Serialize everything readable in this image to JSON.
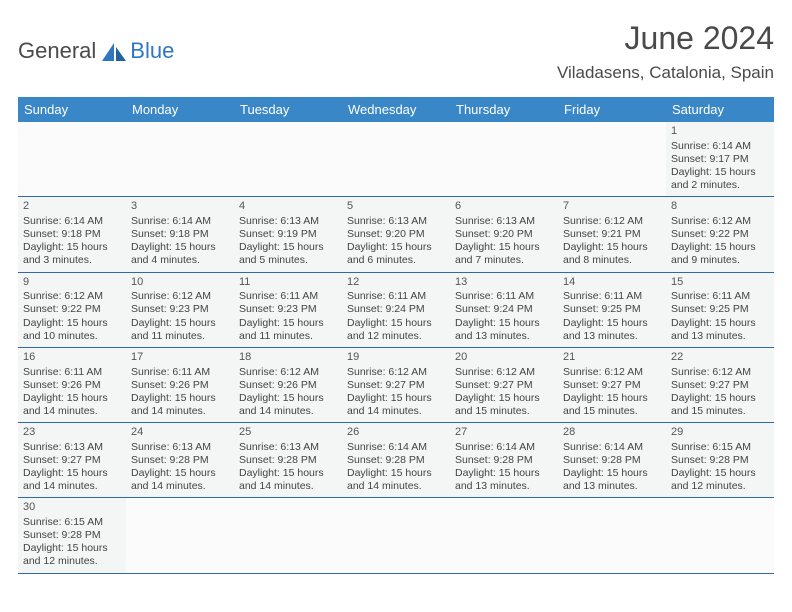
{
  "logo": {
    "general": "General",
    "blue": "Blue"
  },
  "title": "June 2024",
  "location": "Viladasens, Catalonia, Spain",
  "colors": {
    "header_bg": "#3a87c8",
    "header_text": "#ffffff",
    "border": "#2f6aa8",
    "cell_bg": "#f4f5f5",
    "logo_blue": "#2f78bf",
    "text": "#4a4a4a"
  },
  "day_headers": [
    "Sunday",
    "Monday",
    "Tuesday",
    "Wednesday",
    "Thursday",
    "Friday",
    "Saturday"
  ],
  "first_weekday_index": 6,
  "days": [
    {
      "n": 1,
      "sunrise": "6:14 AM",
      "sunset": "9:17 PM",
      "dl": "15 hours and 2 minutes."
    },
    {
      "n": 2,
      "sunrise": "6:14 AM",
      "sunset": "9:18 PM",
      "dl": "15 hours and 3 minutes."
    },
    {
      "n": 3,
      "sunrise": "6:14 AM",
      "sunset": "9:18 PM",
      "dl": "15 hours and 4 minutes."
    },
    {
      "n": 4,
      "sunrise": "6:13 AM",
      "sunset": "9:19 PM",
      "dl": "15 hours and 5 minutes."
    },
    {
      "n": 5,
      "sunrise": "6:13 AM",
      "sunset": "9:20 PM",
      "dl": "15 hours and 6 minutes."
    },
    {
      "n": 6,
      "sunrise": "6:13 AM",
      "sunset": "9:20 PM",
      "dl": "15 hours and 7 minutes."
    },
    {
      "n": 7,
      "sunrise": "6:12 AM",
      "sunset": "9:21 PM",
      "dl": "15 hours and 8 minutes."
    },
    {
      "n": 8,
      "sunrise": "6:12 AM",
      "sunset": "9:22 PM",
      "dl": "15 hours and 9 minutes."
    },
    {
      "n": 9,
      "sunrise": "6:12 AM",
      "sunset": "9:22 PM",
      "dl": "15 hours and 10 minutes."
    },
    {
      "n": 10,
      "sunrise": "6:12 AM",
      "sunset": "9:23 PM",
      "dl": "15 hours and 11 minutes."
    },
    {
      "n": 11,
      "sunrise": "6:11 AM",
      "sunset": "9:23 PM",
      "dl": "15 hours and 11 minutes."
    },
    {
      "n": 12,
      "sunrise": "6:11 AM",
      "sunset": "9:24 PM",
      "dl": "15 hours and 12 minutes."
    },
    {
      "n": 13,
      "sunrise": "6:11 AM",
      "sunset": "9:24 PM",
      "dl": "15 hours and 13 minutes."
    },
    {
      "n": 14,
      "sunrise": "6:11 AM",
      "sunset": "9:25 PM",
      "dl": "15 hours and 13 minutes."
    },
    {
      "n": 15,
      "sunrise": "6:11 AM",
      "sunset": "9:25 PM",
      "dl": "15 hours and 13 minutes."
    },
    {
      "n": 16,
      "sunrise": "6:11 AM",
      "sunset": "9:26 PM",
      "dl": "15 hours and 14 minutes."
    },
    {
      "n": 17,
      "sunrise": "6:11 AM",
      "sunset": "9:26 PM",
      "dl": "15 hours and 14 minutes."
    },
    {
      "n": 18,
      "sunrise": "6:12 AM",
      "sunset": "9:26 PM",
      "dl": "15 hours and 14 minutes."
    },
    {
      "n": 19,
      "sunrise": "6:12 AM",
      "sunset": "9:27 PM",
      "dl": "15 hours and 14 minutes."
    },
    {
      "n": 20,
      "sunrise": "6:12 AM",
      "sunset": "9:27 PM",
      "dl": "15 hours and 15 minutes."
    },
    {
      "n": 21,
      "sunrise": "6:12 AM",
      "sunset": "9:27 PM",
      "dl": "15 hours and 15 minutes."
    },
    {
      "n": 22,
      "sunrise": "6:12 AM",
      "sunset": "9:27 PM",
      "dl": "15 hours and 15 minutes."
    },
    {
      "n": 23,
      "sunrise": "6:13 AM",
      "sunset": "9:27 PM",
      "dl": "15 hours and 14 minutes."
    },
    {
      "n": 24,
      "sunrise": "6:13 AM",
      "sunset": "9:28 PM",
      "dl": "15 hours and 14 minutes."
    },
    {
      "n": 25,
      "sunrise": "6:13 AM",
      "sunset": "9:28 PM",
      "dl": "15 hours and 14 minutes."
    },
    {
      "n": 26,
      "sunrise": "6:14 AM",
      "sunset": "9:28 PM",
      "dl": "15 hours and 14 minutes."
    },
    {
      "n": 27,
      "sunrise": "6:14 AM",
      "sunset": "9:28 PM",
      "dl": "15 hours and 13 minutes."
    },
    {
      "n": 28,
      "sunrise": "6:14 AM",
      "sunset": "9:28 PM",
      "dl": "15 hours and 13 minutes."
    },
    {
      "n": 29,
      "sunrise": "6:15 AM",
      "sunset": "9:28 PM",
      "dl": "15 hours and 12 minutes."
    },
    {
      "n": 30,
      "sunrise": "6:15 AM",
      "sunset": "9:28 PM",
      "dl": "15 hours and 12 minutes."
    }
  ],
  "labels": {
    "sunrise_prefix": "Sunrise: ",
    "sunset_prefix": "Sunset: ",
    "daylight_prefix": "Daylight: "
  }
}
